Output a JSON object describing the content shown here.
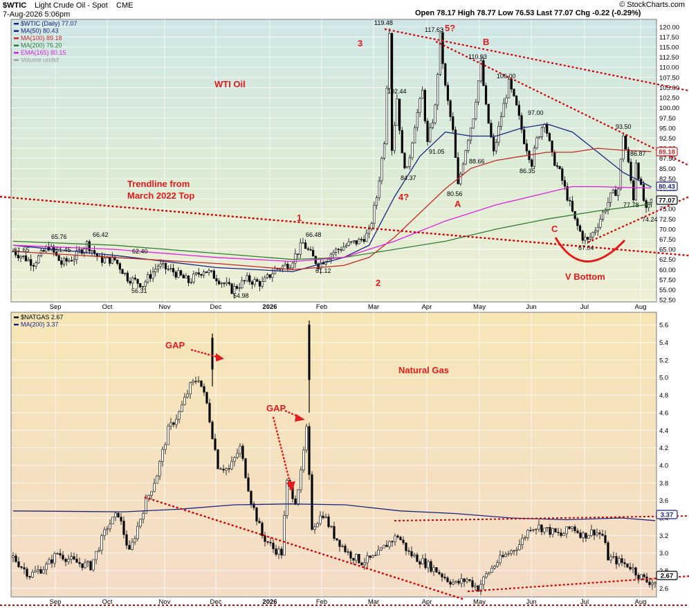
{
  "header": {
    "symbol": "$WTIC",
    "name": "Light Crude Oil - Spot",
    "exchange": "CME",
    "date": "7-Aug-2026 5:06pm",
    "quote": "Open 78.17  High 78.77  Low 76.53  Last 77.07  Chg -0.22 (-0.29%)",
    "watermark": "© StockCharts.com"
  },
  "chart_data": [
    {
      "type": "candlestick",
      "title": "WTI Oil",
      "ylim": [
        52,
        121
      ],
      "yticks": [
        52.5,
        55.0,
        57.5,
        60.0,
        62.5,
        65.0,
        67.5,
        70.0,
        72.5,
        75.0,
        77.5,
        80.0,
        82.5,
        85.0,
        87.5,
        90.0,
        92.5,
        95.0,
        97.5,
        100.0,
        102.5,
        105.0,
        107.5,
        110.0,
        112.5,
        115.0,
        117.5,
        120.0
      ],
      "xticks": [
        "Sep",
        "Oct",
        "Nov",
        "Dec",
        "2026",
        "Feb",
        "Mar",
        "Apr",
        "May",
        "Jun",
        "Jul",
        "Aug"
      ],
      "legend": [
        {
          "text": "$WTIC (Daily) 77.07",
          "color": "#1a237e"
        },
        {
          "text": "MA(50) 80.43",
          "color": "#1a237e"
        },
        {
          "text": "MA(100) 89.18",
          "color": "#c62828"
        },
        {
          "text": "MA(200) 76.20",
          "color": "#2e7d32"
        },
        {
          "text": "EMA(165) 80.15",
          "color": "#e020e0"
        },
        {
          "text": "Volume undef",
          "color": "#9e9e9e"
        }
      ],
      "price_path": [
        [
          0,
          64.5
        ],
        [
          8,
          61.65
        ],
        [
          14,
          65.76
        ],
        [
          19,
          61.45
        ],
        [
          24,
          63
        ],
        [
          29,
          66.42
        ],
        [
          34,
          62.5
        ],
        [
          40,
          62.4
        ],
        [
          45,
          58
        ],
        [
          51,
          56.31
        ],
        [
          57,
          61
        ],
        [
          63,
          59.5
        ],
        [
          69,
          57
        ],
        [
          75,
          60
        ],
        [
          80,
          58
        ],
        [
          86,
          54.98
        ],
        [
          92,
          57.5
        ],
        [
          98,
          56.5
        ],
        [
          103,
          60
        ],
        [
          109,
          61.5
        ],
        [
          114,
          66.48
        ],
        [
          120,
          61.12
        ],
        [
          125,
          64
        ],
        [
          131,
          66
        ],
        [
          136,
          67
        ],
        [
          140,
          69
        ],
        [
          141,
          72
        ],
        [
          143,
          78
        ],
        [
          146,
          92
        ],
        [
          148,
          119.48
        ],
        [
          149,
          90
        ],
        [
          151,
          102.44
        ],
        [
          153,
          88
        ],
        [
          155,
          84.37
        ],
        [
          158,
          96
        ],
        [
          161,
          104
        ],
        [
          163,
          91.05
        ],
        [
          166,
          100
        ],
        [
          168,
          117.63
        ],
        [
          170,
          105
        ],
        [
          173,
          94
        ],
        [
          175,
          80.56
        ],
        [
          178,
          90
        ],
        [
          181,
          98
        ],
        [
          184,
          110.93
        ],
        [
          186,
          100
        ],
        [
          189,
          88.66
        ],
        [
          192,
          98
        ],
        [
          195,
          106
        ],
        [
          198,
          100
        ],
        [
          201,
          92
        ],
        [
          204,
          86.35
        ],
        [
          206,
          92
        ],
        [
          209,
          97
        ],
        [
          212,
          88
        ],
        [
          215,
          84
        ],
        [
          218,
          78
        ],
        [
          221,
          72
        ],
        [
          224,
          68
        ],
        [
          226,
          67.04
        ],
        [
          229,
          70
        ],
        [
          232,
          74
        ],
        [
          235,
          78
        ],
        [
          238,
          80
        ],
        [
          240,
          93.5
        ],
        [
          242,
          86
        ],
        [
          244,
          77.78
        ],
        [
          245,
          86.87
        ],
        [
          247,
          80
        ],
        [
          249,
          74.24
        ],
        [
          251,
          77.07
        ]
      ],
      "extremes_labeled": [
        65.76,
        66.42,
        61.65,
        61.45,
        62.4,
        56.31,
        54.98,
        66.48,
        61.12,
        119.48,
        117.63,
        102.44,
        84.37,
        91.05,
        80.56,
        110.93,
        88.66,
        106.0,
        97.0,
        86.35,
        67.04,
        93.5,
        86.87,
        77.78,
        74.24
      ],
      "indicators": [
        {
          "name": "MA(50)",
          "value": 80.43,
          "color": "#1a237e",
          "path": [
            [
              0,
              66
            ],
            [
              40,
              63.5
            ],
            [
              80,
              60.5
            ],
            [
              110,
              59.5
            ],
            [
              130,
              63
            ],
            [
              140,
              66
            ],
            [
              150,
              78
            ],
            [
              160,
              88
            ],
            [
              170,
              94
            ],
            [
              180,
              93
            ],
            [
              190,
              93
            ],
            [
              200,
              95
            ],
            [
              210,
              96
            ],
            [
              220,
              94
            ],
            [
              230,
              89
            ],
            [
              240,
              84
            ],
            [
              251,
              80.43
            ]
          ]
        },
        {
          "name": "MA(100)",
          "value": 89.18,
          "color": "#c62828",
          "path": [
            [
              0,
              64.5
            ],
            [
              40,
              63
            ],
            [
              80,
              61.5
            ],
            [
              110,
              60
            ],
            [
              130,
              61
            ],
            [
              140,
              63
            ],
            [
              150,
              68
            ],
            [
              160,
              74
            ],
            [
              170,
              80
            ],
            [
              180,
              85
            ],
            [
              190,
              87
            ],
            [
              200,
              88
            ],
            [
              210,
              89
            ],
            [
              220,
              89
            ],
            [
              230,
              90
            ],
            [
              240,
              89.5
            ],
            [
              251,
              89.18
            ]
          ]
        },
        {
          "name": "MA(200)",
          "value": 76.2,
          "color": "#2e7d32",
          "path": [
            [
              0,
              67
            ],
            [
              40,
              66
            ],
            [
              80,
              64
            ],
            [
              110,
              62.5
            ],
            [
              130,
              63
            ],
            [
              150,
              65
            ],
            [
              170,
              67
            ],
            [
              190,
              70
            ],
            [
              210,
              72.5
            ],
            [
              230,
              74.5
            ],
            [
              251,
              76.2
            ]
          ]
        },
        {
          "name": "EMA(165)",
          "value": 80.15,
          "color": "#e020e0",
          "path": [
            [
              0,
              66
            ],
            [
              40,
              65
            ],
            [
              80,
              63
            ],
            [
              110,
              62
            ],
            [
              130,
              63
            ],
            [
              150,
              67
            ],
            [
              170,
              72
            ],
            [
              190,
              76
            ],
            [
              210,
              79
            ],
            [
              220,
              80.5
            ],
            [
              230,
              80.5
            ],
            [
              240,
              80.3
            ],
            [
              251,
              80.15
            ]
          ]
        }
      ],
      "right_badges": [
        {
          "value": "89.18",
          "color": "#c62828"
        },
        {
          "value": "80.43",
          "color": "#1a237e"
        },
        {
          "value": "77.07",
          "color": "#000000"
        }
      ],
      "annotations": [
        "WTI Oil",
        "Trendline from",
        "March 2022 Top",
        "1",
        "2",
        "3",
        "4?",
        "5?",
        "A",
        "B",
        "C",
        "V Bottom"
      ]
    },
    {
      "type": "candlestick",
      "title": "Natural Gas",
      "ylim": [
        2.5,
        5.72
      ],
      "yticks": [
        2.6,
        2.8,
        3.0,
        3.2,
        3.4,
        3.6,
        3.8,
        4.0,
        4.2,
        4.4,
        4.6,
        4.8,
        5.0,
        5.2,
        5.4,
        5.6
      ],
      "xticks": [
        "Sep",
        "Oct",
        "Nov",
        "Dec",
        "2026",
        "Feb",
        "Mar",
        "Apr",
        "May",
        "Jun",
        "Jul",
        "Aug"
      ],
      "legend": [
        {
          "text": "$NATGAS 2.67",
          "color": "#000000"
        },
        {
          "text": "MA(200) 3.37",
          "color": "#1a237e"
        }
      ],
      "price_path": [
        [
          0,
          2.95
        ],
        [
          6,
          2.75
        ],
        [
          12,
          2.85
        ],
        [
          16,
          3.0
        ],
        [
          22,
          2.9
        ],
        [
          28,
          2.85
        ],
        [
          34,
          3.3
        ],
        [
          38,
          3.45
        ],
        [
          42,
          3.0
        ],
        [
          47,
          3.5
        ],
        [
          52,
          3.9
        ],
        [
          56,
          4.4
        ],
        [
          60,
          4.6
        ],
        [
          64,
          4.9
        ],
        [
          67,
          5.0
        ],
        [
          70,
          4.7
        ],
        [
          74,
          4.0
        ],
        [
          78,
          3.95
        ],
        [
          82,
          4.2
        ],
        [
          86,
          3.6
        ],
        [
          90,
          3.2
        ],
        [
          94,
          3.05
        ],
        [
          97,
          3.0
        ],
        [
          99,
          3.8
        ],
        [
          102,
          3.6
        ],
        [
          104,
          3.9
        ],
        [
          106,
          4.4
        ],
        [
          108,
          3.3
        ],
        [
          112,
          3.45
        ],
        [
          116,
          3.2
        ],
        [
          121,
          3.0
        ],
        [
          126,
          2.9
        ],
        [
          131,
          2.95
        ],
        [
          135,
          3.1
        ],
        [
          139,
          3.2
        ],
        [
          143,
          3.0
        ],
        [
          148,
          2.9
        ],
        [
          153,
          2.8
        ],
        [
          157,
          2.7
        ],
        [
          160,
          2.65
        ],
        [
          164,
          2.7
        ],
        [
          168,
          2.6
        ],
        [
          171,
          2.75
        ],
        [
          175,
          2.9
        ],
        [
          179,
          3.0
        ],
        [
          183,
          3.1
        ],
        [
          187,
          3.3
        ],
        [
          190,
          3.3
        ],
        [
          194,
          3.25
        ],
        [
          198,
          3.2
        ],
        [
          202,
          3.3
        ],
        [
          206,
          3.2
        ],
        [
          210,
          3.25
        ],
        [
          213,
          3.2
        ],
        [
          215,
          2.95
        ],
        [
          219,
          2.9
        ],
        [
          223,
          2.85
        ],
        [
          226,
          2.75
        ],
        [
          229,
          2.68
        ],
        [
          232,
          2.67
        ]
      ],
      "spikes": [
        {
          "high": 5.5,
          "low": 4.9
        },
        {
          "high": 5.65,
          "low": 4.6
        }
      ],
      "indicators": [
        {
          "name": "MA(200)",
          "value": 3.37,
          "color": "#1a237e",
          "path": [
            [
              0,
              3.48
            ],
            [
              40,
              3.47
            ],
            [
              60,
              3.5
            ],
            [
              80,
              3.55
            ],
            [
              100,
              3.56
            ],
            [
              120,
              3.55
            ],
            [
              140,
              3.48
            ],
            [
              160,
              3.45
            ],
            [
              180,
              3.4
            ],
            [
              200,
              3.38
            ],
            [
              220,
              3.4
            ],
            [
              232,
              3.37
            ]
          ]
        }
      ],
      "right_badges": [
        {
          "value": "3.37",
          "color": "#1a237e"
        },
        {
          "value": "2.67",
          "color": "#000000"
        }
      ],
      "annotations": [
        "GAP",
        "GAP",
        "Natural Gas"
      ]
    }
  ]
}
